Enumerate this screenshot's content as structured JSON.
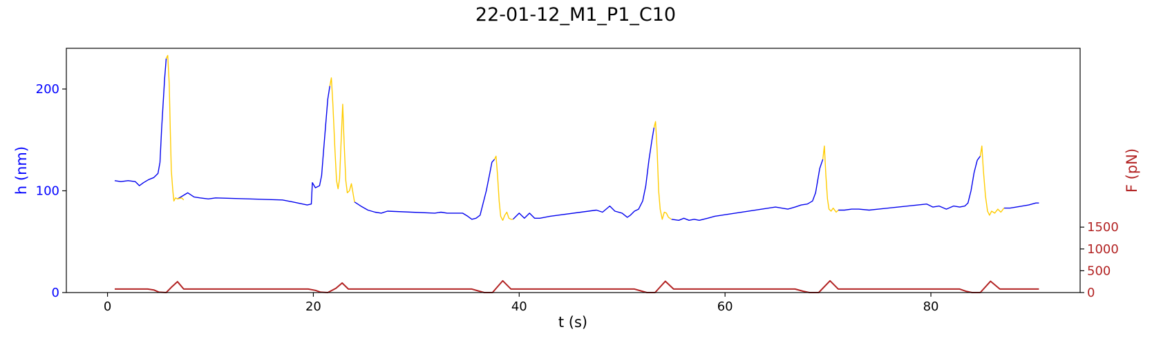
{
  "chart_data": {
    "type": "line",
    "title": "22-01-12_M1_P1_C10",
    "xlabel": "t (s)",
    "ylabel_left": "h (nm)",
    "ylabel_right": "F (pN)",
    "xlim": [
      -4,
      94.5
    ],
    "ylim_left": [
      0,
      240
    ],
    "ylim_right": [
      0,
      5600
    ],
    "x_ticks": [
      0,
      20,
      40,
      60,
      80
    ],
    "y_left_ticks": [
      0,
      100,
      200
    ],
    "y_right_ticks": [
      0,
      500,
      1000,
      1500
    ],
    "grid": false,
    "colors": {
      "h_approach": "#0000ee",
      "h_retract": "#ffcc00",
      "force": "#b22222",
      "left_axis": "#0000ff",
      "right_axis": "#b22222"
    },
    "series": [
      {
        "axis": "left",
        "color": "#0000ee",
        "points": [
          [
            0.7,
            110
          ],
          [
            1.3,
            109
          ],
          [
            2,
            110
          ],
          [
            2.7,
            109
          ],
          [
            3.1,
            105
          ],
          [
            3.5,
            108
          ],
          [
            4,
            111
          ],
          [
            4.5,
            113
          ],
          [
            4.9,
            117
          ],
          [
            5.1,
            128
          ],
          [
            5.25,
            160
          ],
          [
            5.4,
            185
          ],
          [
            5.55,
            210
          ],
          [
            5.7,
            230
          ],
          null,
          [
            6.8,
            92
          ],
          [
            7.3,
            95
          ],
          [
            7.8,
            98
          ],
          [
            8.4,
            94
          ],
          [
            9,
            93
          ],
          [
            9.8,
            92
          ],
          [
            10.5,
            93
          ],
          [
            17,
            91
          ],
          [
            18,
            89
          ],
          [
            19.4,
            86
          ],
          [
            19.8,
            87
          ],
          [
            19.9,
            108
          ],
          [
            20.2,
            103
          ],
          [
            20.6,
            105
          ],
          [
            20.8,
            115
          ],
          [
            21,
            140
          ],
          [
            21.2,
            165
          ],
          [
            21.4,
            190
          ],
          [
            21.6,
            203
          ],
          null,
          [
            24,
            89
          ],
          [
            24.6,
            85
          ],
          [
            25.3,
            81
          ],
          [
            26,
            79
          ],
          [
            26.6,
            78
          ],
          [
            27.2,
            80
          ],
          [
            31.8,
            78
          ],
          [
            32.4,
            79
          ],
          [
            33,
            78
          ],
          [
            34.5,
            78
          ],
          [
            35,
            75
          ],
          [
            35.4,
            72
          ],
          [
            35.8,
            73
          ],
          [
            36.2,
            76
          ],
          [
            36.5,
            88
          ],
          [
            36.8,
            100
          ],
          [
            37.1,
            115
          ],
          [
            37.35,
            128
          ],
          [
            37.6,
            131
          ],
          null,
          [
            39.4,
            72
          ],
          [
            40,
            78
          ],
          [
            40.5,
            73
          ],
          [
            41,
            78
          ],
          [
            41.5,
            73
          ],
          [
            42,
            73
          ],
          [
            43,
            75
          ],
          [
            47.5,
            81
          ],
          [
            48.1,
            79
          ],
          [
            48.8,
            85
          ],
          [
            49.3,
            80
          ],
          [
            50,
            78
          ],
          [
            50.5,
            74
          ],
          [
            50.8,
            76
          ],
          [
            51.2,
            80
          ],
          [
            51.6,
            82
          ],
          [
            52,
            90
          ],
          [
            52.3,
            105
          ],
          [
            52.6,
            130
          ],
          [
            52.9,
            150
          ],
          [
            53.1,
            162
          ],
          null,
          [
            54.8,
            72
          ],
          [
            55.5,
            71
          ],
          [
            56,
            73
          ],
          [
            56.5,
            71
          ],
          [
            57,
            72
          ],
          [
            57.5,
            71
          ],
          [
            58.3,
            73
          ],
          [
            59,
            75
          ],
          [
            64.9,
            84
          ],
          [
            65.5,
            83
          ],
          [
            66.1,
            82
          ],
          [
            66.8,
            84
          ],
          [
            67.4,
            86
          ],
          [
            68,
            87
          ],
          [
            68.5,
            90
          ],
          [
            68.8,
            98
          ],
          [
            69,
            110
          ],
          [
            69.2,
            122
          ],
          [
            69.5,
            131
          ],
          null,
          [
            71,
            81
          ],
          [
            71.6,
            81
          ],
          [
            72.3,
            82
          ],
          [
            73,
            82
          ],
          [
            74,
            81
          ],
          [
            79.6,
            87
          ],
          [
            80.2,
            84
          ],
          [
            80.8,
            85
          ],
          [
            81.5,
            82
          ],
          [
            82.2,
            85
          ],
          [
            82.8,
            84
          ],
          [
            83.3,
            85
          ],
          [
            83.6,
            88
          ],
          [
            83.9,
            100
          ],
          [
            84.2,
            118
          ],
          [
            84.5,
            130
          ],
          [
            84.8,
            134
          ],
          null,
          [
            87.1,
            83
          ],
          [
            87.7,
            83
          ],
          [
            88.3,
            84
          ],
          [
            88.9,
            85
          ],
          [
            89.5,
            86
          ],
          [
            90.2,
            88
          ],
          [
            90.5,
            88
          ]
        ]
      },
      {
        "axis": "left",
        "color": "#ffcc00",
        "points": [
          [
            5.7,
            230
          ],
          [
            5.85,
            233
          ],
          [
            6,
            205
          ],
          [
            6.1,
            160
          ],
          [
            6.2,
            120
          ],
          [
            6.35,
            100
          ],
          [
            6.45,
            90
          ],
          [
            6.6,
            93
          ],
          [
            6.8,
            92
          ],
          [
            7.2,
            93
          ],
          [
            7.4,
            91
          ],
          null,
          [
            21.6,
            203
          ],
          [
            21.75,
            211
          ],
          [
            21.9,
            185
          ],
          [
            22.1,
            140
          ],
          [
            22.25,
            110
          ],
          [
            22.4,
            102
          ],
          [
            22.55,
            112
          ],
          [
            22.7,
            150
          ],
          [
            22.85,
            185
          ],
          [
            23,
            145
          ],
          [
            23.15,
            110
          ],
          [
            23.3,
            98
          ],
          [
            23.5,
            100
          ],
          [
            23.7,
            107
          ],
          [
            24,
            89
          ],
          null,
          [
            37.6,
            131
          ],
          [
            37.75,
            134
          ],
          [
            37.9,
            115
          ],
          [
            38.05,
            90
          ],
          [
            38.2,
            75
          ],
          [
            38.4,
            71
          ],
          [
            38.6,
            76
          ],
          [
            38.8,
            79
          ],
          [
            39,
            73
          ],
          [
            39.2,
            72
          ],
          [
            39.4,
            72
          ],
          null,
          [
            53.1,
            162
          ],
          [
            53.25,
            168
          ],
          [
            53.4,
            140
          ],
          [
            53.55,
            100
          ],
          [
            53.7,
            82
          ],
          [
            53.9,
            72
          ],
          [
            54.1,
            79
          ],
          [
            54.3,
            78
          ],
          [
            54.5,
            74
          ],
          [
            54.8,
            72
          ],
          null,
          [
            69.5,
            131
          ],
          [
            69.65,
            144
          ],
          [
            69.8,
            115
          ],
          [
            69.95,
            92
          ],
          [
            70.1,
            82
          ],
          [
            70.3,
            80
          ],
          [
            70.5,
            83
          ],
          [
            70.8,
            79
          ],
          [
            71,
            81
          ],
          null,
          [
            84.8,
            134
          ],
          [
            84.95,
            144
          ],
          [
            85.1,
            120
          ],
          [
            85.3,
            95
          ],
          [
            85.5,
            80
          ],
          [
            85.7,
            76
          ],
          [
            85.9,
            80
          ],
          [
            86.2,
            78
          ],
          [
            86.5,
            82
          ],
          [
            86.8,
            79
          ],
          [
            87.1,
            83
          ]
        ]
      },
      {
        "axis": "right",
        "color": "#b22222",
        "points": [
          [
            0.7,
            80
          ],
          [
            3.9,
            80
          ],
          [
            4.5,
            60
          ],
          [
            5,
            10
          ],
          [
            5.7,
            0
          ],
          [
            6.2,
            120
          ],
          [
            6.8,
            250
          ],
          [
            7.4,
            80
          ],
          [
            19.5,
            80
          ],
          [
            20.2,
            50
          ],
          [
            20.7,
            10
          ],
          [
            21.4,
            0
          ],
          [
            22.2,
            100
          ],
          [
            22.8,
            220
          ],
          [
            23.4,
            80
          ],
          [
            35.4,
            80
          ],
          [
            36,
            40
          ],
          [
            36.6,
            0
          ],
          [
            37.4,
            0
          ],
          [
            38.4,
            270
          ],
          [
            39.2,
            80
          ],
          [
            51.2,
            80
          ],
          [
            51.8,
            40
          ],
          [
            52.4,
            0
          ],
          [
            53.2,
            0
          ],
          [
            54.2,
            260
          ],
          [
            55,
            80
          ],
          [
            66.8,
            80
          ],
          [
            67.6,
            30
          ],
          [
            68.2,
            0
          ],
          [
            69.1,
            0
          ],
          [
            70.2,
            270
          ],
          [
            71,
            80
          ],
          [
            82.8,
            80
          ],
          [
            83.4,
            30
          ],
          [
            84,
            0
          ],
          [
            84.8,
            0
          ],
          [
            85.8,
            260
          ],
          [
            86.7,
            80
          ],
          [
            90.5,
            80
          ]
        ]
      }
    ]
  }
}
